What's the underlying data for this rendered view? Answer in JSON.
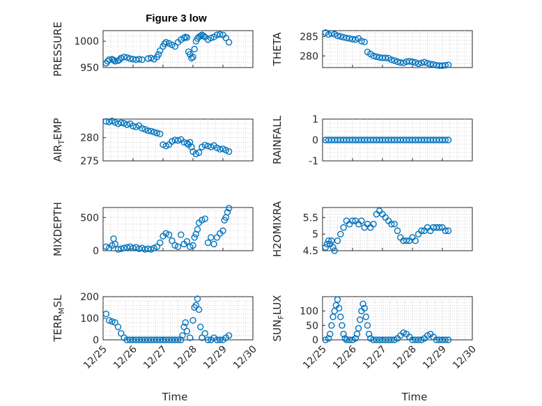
{
  "figure": {
    "title": "Figure 3 low",
    "marker_color": "#0072bd",
    "x_label": "Time",
    "x_tick_labels": [
      "12/25",
      "12/26",
      "12/27",
      "12/28",
      "12/29",
      "12/30"
    ]
  },
  "chart_data": [
    {
      "type": "scatter",
      "title": "Figure 3 low",
      "ylabel": "PRESSURE",
      "xlim": [
        0,
        5
      ],
      "ylim": [
        950,
        1020
      ],
      "yticks": [
        950,
        1000
      ],
      "x": [
        0.1,
        0.15,
        0.2,
        0.3,
        0.35,
        0.4,
        0.5,
        0.55,
        0.6,
        0.7,
        0.8,
        0.9,
        1.0,
        1.1,
        1.2,
        1.3,
        1.5,
        1.6,
        1.7,
        1.8,
        1.85,
        1.9,
        2.0,
        2.05,
        2.1,
        2.2,
        2.3,
        2.4,
        2.5,
        2.6,
        2.7,
        2.75,
        2.8,
        2.85,
        2.9,
        2.95,
        3.0,
        3.05,
        3.1,
        3.15,
        3.2,
        3.25,
        3.3,
        3.35,
        3.4,
        3.5,
        3.6,
        3.7,
        3.8,
        3.9,
        4.0,
        4.1,
        4.2
      ],
      "y": [
        958,
        962,
        965,
        966,
        964,
        962,
        963,
        965,
        968,
        970,
        969,
        967,
        966,
        965,
        966,
        965,
        967,
        968,
        966,
        970,
        975,
        982,
        990,
        995,
        998,
        996,
        993,
        990,
        998,
        1003,
        1006,
        1008,
        1007,
        980,
        975,
        968,
        970,
        985,
        1000,
        1005,
        1008,
        1010,
        1012,
        1010,
        1008,
        1003,
        1006,
        1008,
        1012,
        1013,
        1012,
        1006,
        998
      ]
    },
    {
      "type": "scatter",
      "ylabel": "THETA",
      "xlim": [
        0,
        5
      ],
      "ylim": [
        277,
        286.5
      ],
      "yticks": [
        280,
        285
      ],
      "x": [
        0.1,
        0.2,
        0.3,
        0.4,
        0.5,
        0.6,
        0.7,
        0.8,
        0.9,
        1.0,
        1.1,
        1.2,
        1.3,
        1.4,
        1.5,
        1.6,
        1.7,
        1.8,
        1.9,
        2.0,
        2.1,
        2.2,
        2.3,
        2.4,
        2.5,
        2.6,
        2.7,
        2.8,
        2.9,
        3.0,
        3.1,
        3.2,
        3.3,
        3.4,
        3.5,
        3.6,
        3.7,
        3.8,
        3.9,
        4.0,
        4.1,
        4.2
      ],
      "y": [
        286,
        285.5,
        285.8,
        285.6,
        285.2,
        285,
        284.8,
        284.6,
        284.5,
        284.3,
        284.2,
        284.5,
        283.8,
        283.6,
        281,
        280.5,
        280,
        279.8,
        279.6,
        279.5,
        279.5,
        279.4,
        279,
        278.8,
        278.5,
        278.3,
        278.2,
        278.5,
        278.6,
        278.5,
        278.3,
        278,
        278.2,
        278.4,
        278.1,
        277.9,
        277.8,
        277.6,
        277.5,
        277.5,
        277.6,
        277.7
      ]
    },
    {
      "type": "scatter",
      "ylabel": "AIR_TEMP",
      "xlim": [
        0,
        5
      ],
      "ylim": [
        275,
        284
      ],
      "yticks": [
        275,
        280
      ],
      "x": [
        0.1,
        0.2,
        0.3,
        0.4,
        0.5,
        0.6,
        0.7,
        0.8,
        0.9,
        1.0,
        1.1,
        1.2,
        1.3,
        1.4,
        1.5,
        1.6,
        1.7,
        1.8,
        1.9,
        2.0,
        2.1,
        2.2,
        2.3,
        2.4,
        2.5,
        2.6,
        2.7,
        2.8,
        2.85,
        2.9,
        2.95,
        3.0,
        3.1,
        3.2,
        3.3,
        3.4,
        3.5,
        3.6,
        3.7,
        3.8,
        3.9,
        4.0,
        4.1,
        4.2
      ],
      "y": [
        283.5,
        283.4,
        283.6,
        283.3,
        283,
        283.2,
        283.1,
        282.8,
        283,
        282.5,
        282.3,
        282.6,
        282,
        281.8,
        281.5,
        281.4,
        281.2,
        281,
        280.8,
        278.5,
        278.2,
        278.5,
        279.2,
        279.5,
        279.4,
        279.6,
        279,
        278.8,
        278.5,
        279,
        278,
        277,
        276.5,
        276.8,
        278,
        278.4,
        278.2,
        278,
        278.3,
        277.8,
        277.5,
        277.6,
        277.3,
        277
      ]
    },
    {
      "type": "scatter",
      "ylabel": "RAINFALL",
      "xlim": [
        0,
        5
      ],
      "ylim": [
        -1,
        1
      ],
      "yticks": [
        -1,
        0,
        1
      ],
      "x": [
        0.1,
        0.2,
        0.3,
        0.4,
        0.5,
        0.6,
        0.7,
        0.8,
        0.9,
        1.0,
        1.1,
        1.2,
        1.3,
        1.4,
        1.5,
        1.6,
        1.7,
        1.8,
        1.9,
        2.0,
        2.1,
        2.2,
        2.3,
        2.4,
        2.5,
        2.6,
        2.7,
        2.8,
        2.9,
        3.0,
        3.1,
        3.2,
        3.3,
        3.4,
        3.5,
        3.6,
        3.7,
        3.8,
        3.9,
        4.0,
        4.1,
        4.2
      ],
      "y": [
        0,
        0,
        0,
        0,
        0,
        0,
        0,
        0,
        0,
        0,
        0,
        0,
        0,
        0,
        0,
        0,
        0,
        0,
        0,
        0,
        0,
        0,
        0,
        0,
        0,
        0,
        0,
        0,
        0,
        0,
        0,
        0,
        0,
        0,
        0,
        0,
        0,
        0,
        0,
        0,
        0,
        0
      ]
    },
    {
      "type": "scatter",
      "ylabel": "MIXDEPTH",
      "xlim": [
        0,
        5
      ],
      "ylim": [
        0,
        650
      ],
      "yticks": [
        0,
        500
      ],
      "x": [
        0.1,
        0.2,
        0.3,
        0.35,
        0.4,
        0.5,
        0.6,
        0.7,
        0.8,
        0.9,
        1.0,
        1.1,
        1.2,
        1.3,
        1.4,
        1.5,
        1.6,
        1.7,
        1.8,
        1.9,
        2.0,
        2.1,
        2.2,
        2.3,
        2.4,
        2.5,
        2.6,
        2.7,
        2.8,
        2.9,
        3.0,
        3.05,
        3.1,
        3.15,
        3.2,
        3.3,
        3.4,
        3.5,
        3.6,
        3.7,
        3.8,
        3.9,
        4.0,
        4.05,
        4.1,
        4.15,
        4.2
      ],
      "y": [
        60,
        40,
        80,
        180,
        100,
        20,
        30,
        40,
        50,
        60,
        40,
        50,
        30,
        40,
        20,
        30,
        20,
        40,
        60,
        120,
        220,
        260,
        240,
        150,
        80,
        60,
        240,
        100,
        140,
        60,
        80,
        200,
        250,
        320,
        420,
        460,
        480,
        120,
        200,
        100,
        200,
        260,
        300,
        460,
        500,
        580,
        640
      ]
    },
    {
      "type": "scatter",
      "ylabel": "H2OMIXRA",
      "xlim": [
        0,
        5
      ],
      "ylim": [
        4.5,
        5.8
      ],
      "yticks": [
        4.5,
        5,
        5.5
      ],
      "x": [
        0.1,
        0.15,
        0.2,
        0.25,
        0.3,
        0.35,
        0.4,
        0.5,
        0.6,
        0.7,
        0.8,
        0.9,
        1.0,
        1.1,
        1.2,
        1.3,
        1.4,
        1.5,
        1.6,
        1.7,
        1.8,
        1.9,
        2.0,
        2.1,
        2.2,
        2.3,
        2.4,
        2.5,
        2.6,
        2.7,
        2.8,
        2.9,
        3.0,
        3.1,
        3.2,
        3.3,
        3.4,
        3.5,
        3.6,
        3.7,
        3.8,
        3.9,
        4.0,
        4.1,
        4.2
      ],
      "y": [
        4.6,
        4.7,
        4.8,
        4.7,
        4.8,
        4.6,
        4.5,
        4.8,
        5.0,
        5.2,
        5.4,
        5.3,
        5.4,
        5.4,
        5.3,
        5.4,
        5.2,
        5.3,
        5.2,
        5.3,
        5.6,
        5.7,
        5.6,
        5.5,
        5.4,
        5.3,
        5.3,
        5.1,
        4.9,
        4.8,
        4.8,
        4.8,
        4.9,
        4.8,
        5.0,
        5.1,
        5.1,
        5.2,
        5.1,
        5.2,
        5.2,
        5.2,
        5.2,
        5.1,
        5.1
      ]
    },
    {
      "type": "scatter",
      "ylabel": "TERR_MSL",
      "xlim": [
        0,
        5
      ],
      "ylim": [
        0,
        200
      ],
      "yticks": [
        0,
        100,
        200
      ],
      "x": [
        0.1,
        0.2,
        0.3,
        0.4,
        0.5,
        0.6,
        0.7,
        0.8,
        0.9,
        1.0,
        1.1,
        1.2,
        1.3,
        1.4,
        1.5,
        1.6,
        1.7,
        1.8,
        1.9,
        2.0,
        2.1,
        2.2,
        2.3,
        2.4,
        2.5,
        2.6,
        2.65,
        2.7,
        2.75,
        2.8,
        2.9,
        3.0,
        3.05,
        3.1,
        3.15,
        3.2,
        3.25,
        3.3,
        3.4,
        3.5,
        3.6,
        3.7,
        3.8,
        3.9,
        4.0,
        4.1,
        4.2
      ],
      "y": [
        120,
        90,
        85,
        80,
        60,
        30,
        10,
        0,
        0,
        0,
        0,
        0,
        0,
        0,
        0,
        0,
        0,
        0,
        0,
        0,
        0,
        0,
        0,
        0,
        0,
        0,
        20,
        60,
        80,
        40,
        10,
        90,
        150,
        160,
        190,
        140,
        60,
        10,
        30,
        0,
        0,
        10,
        0,
        0,
        0,
        10,
        20
      ]
    },
    {
      "type": "scatter",
      "ylabel": "SUN_FLUX",
      "xlim": [
        0,
        5
      ],
      "ylim": [
        0,
        150
      ],
      "yticks": [
        0,
        50,
        100
      ],
      "x": [
        0.1,
        0.2,
        0.25,
        0.3,
        0.35,
        0.4,
        0.45,
        0.5,
        0.55,
        0.6,
        0.65,
        0.7,
        0.75,
        0.8,
        0.9,
        1.0,
        1.1,
        1.15,
        1.2,
        1.25,
        1.3,
        1.35,
        1.4,
        1.45,
        1.5,
        1.55,
        1.6,
        1.7,
        1.8,
        1.9,
        2.0,
        2.1,
        2.2,
        2.3,
        2.4,
        2.5,
        2.6,
        2.7,
        2.8,
        2.9,
        3.0,
        3.1,
        3.2,
        3.3,
        3.4,
        3.5,
        3.6,
        3.7,
        3.8,
        3.9,
        4.0,
        4.1,
        4.2
      ],
      "y": [
        0,
        5,
        20,
        50,
        80,
        100,
        120,
        140,
        110,
        80,
        50,
        20,
        5,
        0,
        0,
        0,
        5,
        20,
        40,
        70,
        100,
        125,
        110,
        80,
        50,
        20,
        5,
        0,
        0,
        0,
        0,
        0,
        0,
        0,
        0,
        5,
        15,
        25,
        20,
        10,
        0,
        0,
        0,
        0,
        5,
        15,
        20,
        10,
        0,
        0,
        0,
        0,
        0
      ]
    }
  ]
}
